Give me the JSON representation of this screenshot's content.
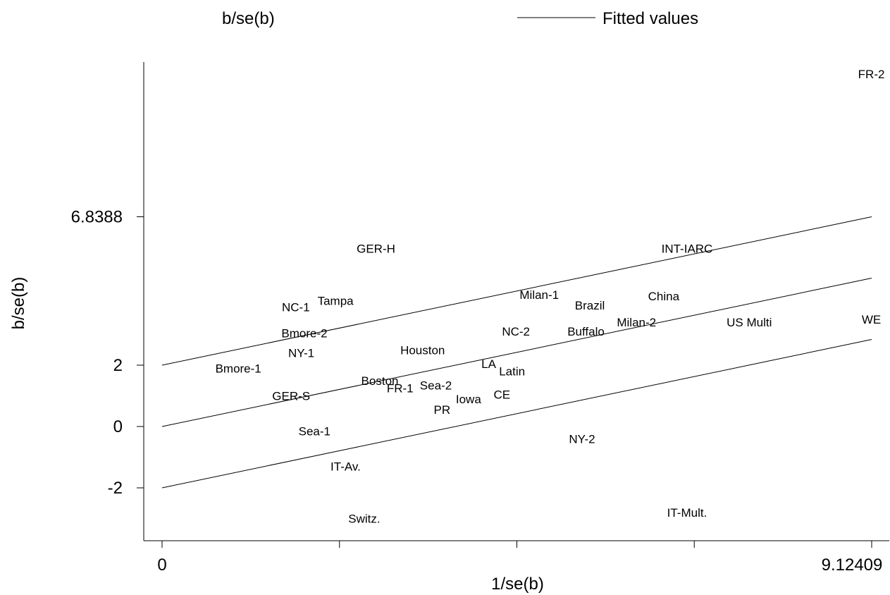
{
  "chart_data": {
    "type": "scatter",
    "title": "",
    "xlabel": "1/se(b)",
    "ylabel": "b/se(b)",
    "xlim": [
      0,
      9.12409
    ],
    "ylim": [
      -3.7,
      12.1
    ],
    "x_ticks": [
      0,
      2.281,
      4.562,
      6.843,
      9.12409
    ],
    "x_tick_labels": [
      "0",
      "",
      "",
      "",
      "9.12409"
    ],
    "y_ticks": [
      -2,
      0,
      2,
      6.8388
    ],
    "y_tick_labels": [
      "-2",
      "0",
      "2",
      "6.8388"
    ],
    "legend": {
      "position": "top",
      "entries": [
        {
          "label": "b/se(b)",
          "marker": "none"
        },
        {
          "label": "Fitted values",
          "marker": "line"
        }
      ]
    },
    "grid": false,
    "points": [
      {
        "label": "FR-2",
        "x": 9.12,
        "y": 11.5
      },
      {
        "label": "GER-H",
        "x": 2.75,
        "y": 5.8
      },
      {
        "label": "INT-IARC",
        "x": 6.75,
        "y": 5.8
      },
      {
        "label": "Milan-1",
        "x": 4.85,
        "y": 4.3
      },
      {
        "label": "China",
        "x": 6.45,
        "y": 4.25
      },
      {
        "label": "NC-1",
        "x": 1.72,
        "y": 3.9
      },
      {
        "label": "Tampa",
        "x": 2.23,
        "y": 4.1
      },
      {
        "label": "Brazil",
        "x": 5.5,
        "y": 3.95
      },
      {
        "label": "WE",
        "x": 9.12,
        "y": 3.5
      },
      {
        "label": "Milan-2",
        "x": 6.1,
        "y": 3.4
      },
      {
        "label": "US Multi",
        "x": 7.55,
        "y": 3.4
      },
      {
        "label": "NC-2",
        "x": 4.55,
        "y": 3.1
      },
      {
        "label": "Buffalo",
        "x": 5.45,
        "y": 3.1
      },
      {
        "label": "Bmore-2",
        "x": 1.83,
        "y": 3.05
      },
      {
        "label": "Houston",
        "x": 3.35,
        "y": 2.5
      },
      {
        "label": "NY-1",
        "x": 1.79,
        "y": 2.4
      },
      {
        "label": "LA",
        "x": 4.2,
        "y": 2.05
      },
      {
        "label": "Latin",
        "x": 4.5,
        "y": 1.8
      },
      {
        "label": "Bmore-1",
        "x": 0.98,
        "y": 1.9
      },
      {
        "label": "Boston",
        "x": 2.8,
        "y": 1.5
      },
      {
        "label": "FR-1",
        "x": 3.06,
        "y": 1.25
      },
      {
        "label": "Sea-2",
        "x": 3.52,
        "y": 1.35
      },
      {
        "label": "GER-S",
        "x": 1.66,
        "y": 1.0
      },
      {
        "label": "CE",
        "x": 4.37,
        "y": 1.05
      },
      {
        "label": "Iowa",
        "x": 3.94,
        "y": 0.9
      },
      {
        "label": "PR",
        "x": 3.6,
        "y": 0.55
      },
      {
        "label": "Sea-1",
        "x": 1.96,
        "y": -0.15
      },
      {
        "label": "NY-2",
        "x": 5.4,
        "y": -0.4
      },
      {
        "label": "IT-Av.",
        "x": 2.36,
        "y": -1.3
      },
      {
        "label": "IT-Mult.",
        "x": 6.75,
        "y": -2.8
      },
      {
        "label": "Switz.",
        "x": 2.6,
        "y": -3.0
      }
    ],
    "fitted_lines": [
      {
        "x": [
          0,
          9.12409
        ],
        "y": [
          2,
          6.8388
        ]
      },
      {
        "x": [
          0,
          9.12409
        ],
        "y": [
          0,
          4.8388
        ]
      },
      {
        "x": [
          0,
          9.12409
        ],
        "y": [
          -2,
          2.8388
        ]
      }
    ]
  }
}
